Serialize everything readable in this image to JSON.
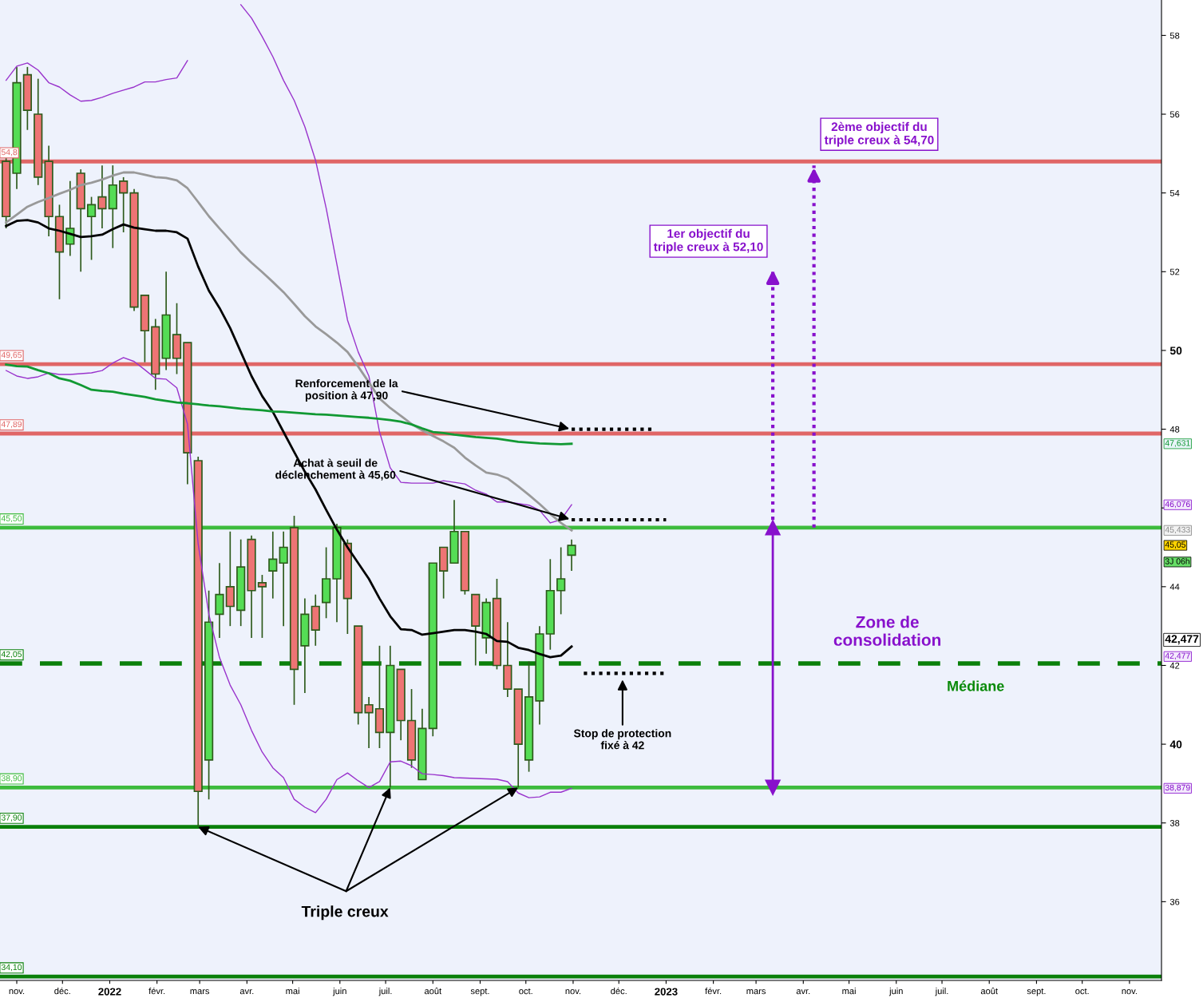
{
  "chart_data": {
    "type": "candlestick",
    "x": [
      "2021-10-25",
      "2021-11-01",
      "2021-11-08",
      "2021-11-15",
      "2021-11-22",
      "2021-11-29",
      "2021-12-06",
      "2021-12-13",
      "2021-12-20",
      "2021-12-27",
      "2022-01-03",
      "2022-01-10",
      "2022-01-17",
      "2022-01-24",
      "2022-01-31",
      "2022-02-07",
      "2022-02-14",
      "2022-02-21",
      "2022-02-28",
      "2022-03-07",
      "2022-03-14",
      "2022-03-21",
      "2022-03-28",
      "2022-04-04",
      "2022-04-11",
      "2022-04-18",
      "2022-04-25",
      "2022-05-02",
      "2022-05-09",
      "2022-05-16",
      "2022-05-23",
      "2022-05-30",
      "2022-06-06",
      "2022-06-13",
      "2022-06-20",
      "2022-06-27",
      "2022-07-04",
      "2022-07-11",
      "2022-07-18",
      "2022-07-25",
      "2022-08-01",
      "2022-08-08",
      "2022-08-15",
      "2022-08-22",
      "2022-08-29",
      "2022-09-05",
      "2022-09-12",
      "2022-09-19",
      "2022-09-26",
      "2022-10-03",
      "2022-10-10",
      "2022-10-17",
      "2022-10-24",
      "2022-10-31"
    ],
    "ohlc": [
      [
        54.8,
        54.9,
        53.1,
        53.4
      ],
      [
        54.5,
        57.2,
        54.1,
        56.8
      ],
      [
        57.0,
        57.2,
        55.6,
        56.1
      ],
      [
        56.0,
        56.9,
        54.2,
        54.4
      ],
      [
        54.8,
        55.2,
        52.9,
        53.4
      ],
      [
        53.4,
        53.7,
        51.3,
        52.5
      ],
      [
        52.7,
        54.3,
        52.4,
        53.1
      ],
      [
        54.5,
        54.6,
        52.0,
        53.6
      ],
      [
        53.4,
        53.9,
        52.3,
        53.7
      ],
      [
        53.9,
        54.7,
        53.1,
        53.6
      ],
      [
        53.6,
        54.7,
        52.6,
        54.2
      ],
      [
        54.3,
        54.4,
        53.0,
        54.0
      ],
      [
        54.0,
        54.1,
        51.0,
        51.1
      ],
      [
        51.4,
        51.4,
        49.7,
        50.5
      ],
      [
        50.6,
        50.8,
        49.0,
        49.4
      ],
      [
        49.8,
        52.0,
        49.5,
        50.9
      ],
      [
        50.4,
        51.2,
        49.4,
        49.8
      ],
      [
        50.2,
        50.2,
        46.6,
        47.4
      ],
      [
        47.2,
        47.3,
        37.9,
        38.8
      ],
      [
        39.6,
        43.9,
        38.6,
        43.1
      ],
      [
        43.3,
        44.6,
        42.7,
        43.8
      ],
      [
        44.0,
        45.4,
        43.0,
        43.5
      ],
      [
        43.4,
        45.2,
        43.0,
        44.5
      ],
      [
        45.2,
        45.3,
        42.7,
        43.9
      ],
      [
        44.1,
        44.3,
        42.7,
        44.0
      ],
      [
        44.4,
        45.4,
        43.7,
        44.7
      ],
      [
        44.6,
        45.4,
        43.0,
        45.0
      ],
      [
        45.5,
        45.8,
        41.0,
        41.9
      ],
      [
        42.5,
        43.7,
        41.3,
        43.3
      ],
      [
        43.5,
        43.8,
        42.5,
        42.9
      ],
      [
        43.6,
        45.0,
        43.2,
        44.2
      ],
      [
        44.2,
        45.6,
        43.1,
        45.5
      ],
      [
        45.1,
        45.2,
        42.8,
        43.7
      ],
      [
        43.0,
        43.0,
        40.5,
        40.8
      ],
      [
        41.0,
        41.2,
        39.9,
        40.8
      ],
      [
        40.9,
        42.5,
        39.9,
        40.3
      ],
      [
        40.3,
        42.5,
        38.9,
        42.0
      ],
      [
        41.9,
        41.9,
        40.1,
        40.6
      ],
      [
        40.6,
        41.4,
        39.4,
        39.6
      ],
      [
        39.1,
        40.9,
        39.1,
        40.4
      ],
      [
        40.4,
        44.6,
        40.2,
        44.6
      ],
      [
        45.0,
        45.0,
        43.7,
        44.4
      ],
      [
        44.6,
        46.2,
        44.6,
        45.4
      ],
      [
        45.4,
        45.4,
        43.8,
        43.9
      ],
      [
        43.8,
        43.8,
        42.0,
        43.0
      ],
      [
        42.7,
        43.7,
        42.3,
        43.6
      ],
      [
        43.7,
        44.2,
        41.9,
        42.0
      ],
      [
        42.0,
        43.1,
        41.2,
        41.4
      ],
      [
        41.4,
        41.4,
        38.9,
        40.0
      ],
      [
        39.6,
        42.1,
        39.3,
        41.2
      ],
      [
        41.1,
        43.0,
        40.5,
        42.8
      ],
      [
        42.8,
        44.7,
        42.4,
        43.9
      ],
      [
        43.9,
        45.0,
        43.3,
        44.2
      ],
      [
        44.8,
        45.2,
        44.4,
        45.05
      ]
    ],
    "series": [
      {
        "type": "line",
        "color": "#000000",
        "values": [
          53.16,
          53.29,
          53.31,
          53.25,
          53.1,
          53.04,
          52.96,
          52.88,
          52.9,
          52.94,
          53.08,
          53.2,
          53.12,
          53.08,
          53.04,
          53.04,
          53.0,
          52.84,
          52.13,
          51.52,
          51.08,
          50.57,
          49.96,
          49.35,
          48.84,
          48.44,
          47.93,
          47.42,
          46.92,
          46.47,
          45.95,
          45.45,
          45.0,
          44.6,
          44.2,
          43.7,
          43.25,
          42.92,
          42.9,
          42.78,
          42.82,
          42.86,
          42.9,
          42.9,
          42.86,
          42.8,
          42.62,
          42.6,
          42.45,
          42.39,
          42.29,
          42.21,
          42.25,
          42.48
        ]
      },
      {
        "type": "line",
        "color": "#9933cc",
        "values": [
          56.86,
          57.22,
          57.3,
          57.12,
          56.8,
          56.69,
          56.49,
          56.33,
          56.35,
          56.43,
          56.53,
          56.61,
          56.69,
          56.82,
          56.82,
          56.88,
          56.92,
          57.36,
          null,
          null,
          null,
          null,
          58.78,
          58.44,
          57.97,
          57.46,
          56.86,
          56.35,
          55.68,
          54.83,
          53.61,
          52.19,
          50.77,
          49.96,
          49.35,
          47.93,
          47.02,
          46.65,
          46.63,
          46.63,
          46.63,
          46.69,
          46.65,
          46.61,
          46.45,
          46.35,
          46.15,
          46.15,
          46.11,
          46.07,
          45.94,
          45.62,
          45.7,
          46.08
        ]
      },
      {
        "type": "line",
        "color": "#9933cc",
        "values": [
          49.49,
          49.35,
          49.29,
          49.33,
          49.43,
          49.39,
          49.39,
          49.41,
          49.43,
          49.49,
          49.68,
          49.82,
          49.72,
          49.51,
          49.29,
          49.27,
          49.05,
          48.13,
          45.09,
          43.3,
          42.2,
          41.5,
          41.0,
          40.35,
          39.8,
          39.4,
          39.15,
          38.6,
          38.4,
          38.26,
          38.6,
          39.1,
          39.27,
          39.07,
          38.9,
          39.05,
          39.55,
          39.57,
          39.45,
          39.25,
          39.23,
          39.2,
          39.15,
          39.14,
          39.13,
          39.12,
          39.11,
          39.05,
          38.76,
          38.64,
          38.66,
          38.78,
          38.78,
          38.88
        ]
      },
      {
        "type": "line",
        "color": "#999999",
        "values": [
          53.25,
          53.45,
          53.65,
          53.77,
          53.87,
          53.98,
          54.08,
          54.2,
          54.26,
          54.34,
          54.44,
          54.52,
          54.52,
          54.46,
          54.4,
          54.38,
          54.32,
          54.12,
          53.77,
          53.41,
          53.1,
          52.8,
          52.49,
          52.23,
          51.99,
          51.74,
          51.48,
          51.18,
          50.87,
          50.61,
          50.41,
          50.2,
          49.96,
          49.59,
          49.19,
          48.78,
          48.54,
          48.34,
          48.13,
          47.97,
          47.83,
          47.69,
          47.53,
          47.28,
          47.08,
          46.9,
          46.85,
          46.75,
          46.55,
          46.33,
          46.1,
          45.85,
          45.62,
          45.43
        ]
      },
      {
        "type": "line",
        "color": "#119933",
        "values": [
          49.64,
          49.6,
          49.59,
          49.5,
          49.42,
          49.29,
          49.23,
          49.12,
          49.0,
          48.97,
          48.95,
          48.9,
          48.86,
          48.82,
          48.76,
          48.72,
          48.68,
          48.66,
          48.63,
          48.6,
          48.58,
          48.55,
          48.52,
          48.5,
          48.48,
          48.45,
          48.44,
          48.42,
          48.4,
          48.38,
          48.37,
          48.35,
          48.33,
          48.31,
          48.29,
          48.26,
          48.23,
          48.19,
          48.12,
          48.02,
          47.93,
          47.9,
          47.86,
          47.83,
          47.8,
          47.78,
          47.76,
          47.72,
          47.68,
          47.66,
          47.64,
          47.63,
          47.62,
          47.63
        ]
      },
      {
        "type": "line",
        "color": "#000000",
        "line_style": "dotted",
        "x": [
          "2022-10-31",
          "2022-12-25"
        ],
        "values": [
          48.0,
          48.0
        ]
      },
      {
        "type": "line",
        "color": "#000000",
        "line_style": "dotted",
        "x": [
          "2022-10-31",
          "2023-01-01"
        ],
        "values": [
          45.7,
          45.7
        ]
      },
      {
        "type": "line",
        "color": "#000000",
        "line_style": "dotted",
        "x": [
          "2022-11-08",
          "2023-01-01"
        ],
        "values": [
          41.8,
          41.8
        ]
      },
      {
        "type": "line",
        "color": "#8811cc",
        "line_style": "dotted",
        "x": [
          "2023-03-12",
          "2023-03-12"
        ],
        "values": [
          45.5,
          52.1
        ]
      },
      {
        "type": "line",
        "color": "#8811cc",
        "line_style": "dotted",
        "x": [
          "2023-04-08",
          "2023-04-08"
        ],
        "values": [
          45.5,
          54.7
        ]
      },
      {
        "type": "line",
        "color": "#8811cc",
        "marker": "triangle",
        "x": [
          "2023-03-12",
          "2023-03-12"
        ],
        "values": [
          38.9,
          45.5
        ]
      }
    ],
    "ref_lines": [
      {
        "axis": "y",
        "value": 54.8,
        "label": "54,8",
        "color": "#e06666"
      },
      {
        "axis": "y",
        "value": 49.65,
        "label": "49,65",
        "color": "#e06666"
      },
      {
        "axis": "y",
        "value": 47.89,
        "label": "47,89",
        "color": "#e06666"
      },
      {
        "axis": "y",
        "value": 45.5,
        "label": "45,50",
        "color": "#3dbb3d"
      },
      {
        "axis": "y",
        "value": 42.05,
        "label": "42,05",
        "color": "#0a800a",
        "line_style": "dashed"
      },
      {
        "axis": "y",
        "value": 38.9,
        "label": "38,90",
        "color": "#3dbb3d"
      },
      {
        "axis": "y",
        "value": 37.9,
        "label": "37,90",
        "color": "#0a800a"
      },
      {
        "axis": "y",
        "value": 34.1,
        "label": "34,10",
        "color": "#0a800a"
      }
    ],
    "annotations": [
      "2ème objectif du\ntriple creux à 54,70",
      "1er objectif du\ntriple creux à 52,10",
      {
        "text": "Renforcement de la\nposition à 47,90",
        "x": "2022-10-31",
        "y": 48.0
      },
      {
        "text": "Achat à seuil de\ndéclenchement à 45,60",
        "x": "2022-10-31",
        "y": 45.7
      },
      "Stop de protection\nfixé à 42",
      "Zone de\nconsolidation",
      "Médiane",
      {
        "text": "Triple creux",
        "x": "2022-02-28",
        "y": 37.9
      },
      "47,631",
      "46,076",
      "45,433",
      "45,05",
      "3J 06h",
      "42,477",
      "42,477",
      "38,879"
    ],
    "xlim": [
      "2021-10-21",
      "2023-11-22"
    ],
    "xticks": [
      {
        "value": "2021-11-01",
        "label": "nov."
      },
      {
        "value": "2021-12-01",
        "label": "déc."
      },
      {
        "value": "2022-01-01",
        "label": "2022"
      },
      {
        "value": "2022-02-01",
        "label": "févr."
      },
      {
        "value": "2022-03-01",
        "label": "mars"
      },
      {
        "value": "2022-04-01",
        "label": "avr."
      },
      {
        "value": "2022-05-01",
        "label": "mai"
      },
      {
        "value": "2022-06-01",
        "label": "juin"
      },
      {
        "value": "2022-07-01",
        "label": "juil."
      },
      {
        "value": "2022-08-01",
        "label": "août"
      },
      {
        "value": "2022-09-01",
        "label": "sept."
      },
      {
        "value": "2022-10-01",
        "label": "oct."
      },
      {
        "value": "2022-11-01",
        "label": "nov."
      },
      {
        "value": "2022-12-01",
        "label": "déc."
      },
      {
        "value": "2023-01-01",
        "label": "2023"
      },
      {
        "value": "2023-02-01",
        "label": "févr."
      },
      {
        "value": "2023-03-01",
        "label": "mars"
      },
      {
        "value": "2023-04-01",
        "label": "avr."
      },
      {
        "value": "2023-05-01",
        "label": "mai"
      },
      {
        "value": "2023-06-01",
        "label": "juin"
      },
      {
        "value": "2023-07-01",
        "label": "juil."
      },
      {
        "value": "2023-08-01",
        "label": "août"
      },
      {
        "value": "2023-09-01",
        "label": "sept."
      },
      {
        "value": "2023-10-01",
        "label": "oct."
      },
      {
        "value": "2023-11-01",
        "label": "nov."
      }
    ],
    "ylim": [
      34.0,
      58.9
    ],
    "yticks": [
      36,
      38,
      40,
      42,
      44,
      {
        "value": 46,
        "label": null
      },
      48,
      50,
      52,
      54,
      56,
      58
    ],
    "grid": false,
    "legend": false
  }
}
